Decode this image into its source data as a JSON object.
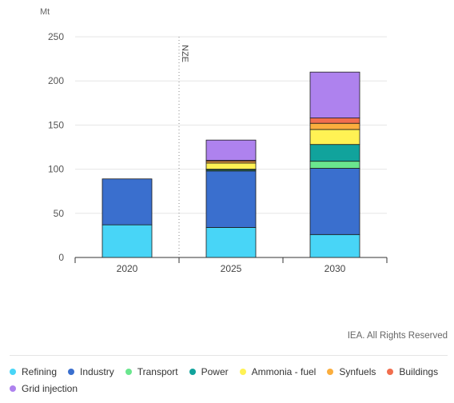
{
  "chart_data": {
    "type": "bar",
    "stacked": true,
    "unit_label": "Mt",
    "categories": [
      "2020",
      "2025",
      "2030"
    ],
    "ylim": [
      0,
      250
    ],
    "yticks": [
      0,
      50,
      100,
      150,
      200,
      250
    ],
    "grid": true,
    "annotation": {
      "text": "NZE",
      "between": [
        "2020",
        "2025"
      ]
    },
    "series": [
      {
        "name": "Refining",
        "color": "#48d5f7",
        "values": [
          37,
          34,
          26
        ]
      },
      {
        "name": "Industry",
        "color": "#3a6fce",
        "values": [
          52,
          64,
          75
        ]
      },
      {
        "name": "Transport",
        "color": "#6ae68e",
        "values": [
          0,
          1,
          8
        ]
      },
      {
        "name": "Power",
        "color": "#11a39c",
        "values": [
          0,
          1,
          19
        ]
      },
      {
        "name": "Ammonia - fuel",
        "color": "#fff254",
        "values": [
          0,
          7,
          17
        ]
      },
      {
        "name": "Synfuels",
        "color": "#fbae3e",
        "values": [
          0,
          2,
          7
        ]
      },
      {
        "name": "Buildings",
        "color": "#f16e4e",
        "values": [
          0,
          1,
          6
        ]
      },
      {
        "name": "Grid injection",
        "color": "#ae82ee",
        "values": [
          0,
          23,
          52
        ]
      }
    ],
    "legend_position": "bottom"
  },
  "credit": "IEA. All Rights Reserved"
}
